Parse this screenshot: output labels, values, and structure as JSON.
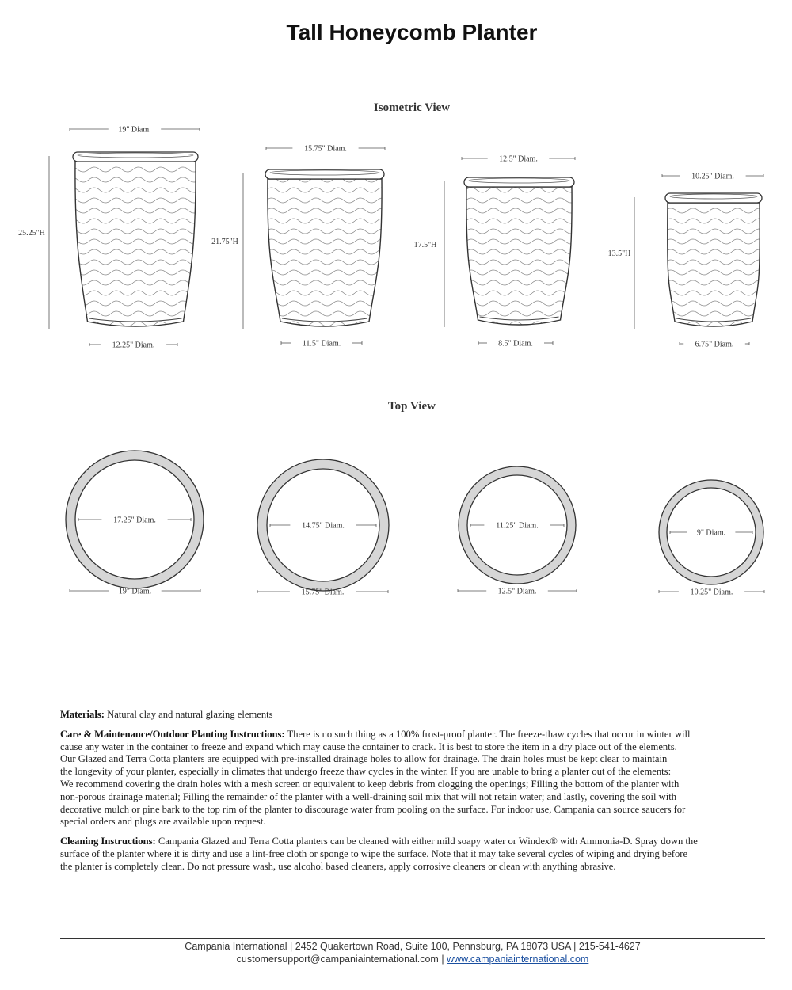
{
  "title": "Tall Honeycomb Planter",
  "isometric_title": "Isometric View",
  "top_title": "Top View",
  "planters": [
    {
      "top": "19\" Diam.",
      "height": "25.25\"H",
      "bottom": "12.25\" Diam.",
      "outer": "19\" Diam.",
      "inner": "17.25\" Diam."
    },
    {
      "top": "15.75\" Diam.",
      "height": "21.75\"H",
      "bottom": "11.5\" Diam.",
      "outer": "15.75\" Diam.",
      "inner": "14.75\" Diam."
    },
    {
      "top": "12.5\" Diam.",
      "height": "17.5\"H",
      "bottom": "8.5\" Diam.",
      "outer": "12.5\" Diam.",
      "inner": "11.25\" Diam."
    },
    {
      "top": "10.25\" Diam.",
      "height": "13.5\"H",
      "bottom": "6.75\" Diam.",
      "outer": "10.25\" Diam.",
      "inner": "9\" Diam."
    }
  ],
  "materials": {
    "label": "Materials:",
    "lines": [
      " Natural clay and natural glazing elements"
    ]
  },
  "care": {
    "label": "Care & Maintenance/Outdoor Planting Instructions:",
    "lines": [
      " There is no such thing as a 100% frost-proof planter. The freeze-thaw cycles that occur in winter will",
      "cause any water in the container to freeze and expand which may cause the container to crack. It is best to store the item in a dry place out of the elements.",
      "Our Glazed and Terra Cotta planters are equipped with pre-installed drainage holes to allow for drainage. The drain holes must be kept clear to maintain",
      "the longevity of your planter, especially in climates that undergo freeze thaw cycles in the winter. If you are unable to bring a planter out of the elements:",
      "We recommend covering the drain holes with a mesh screen or equivalent to keep debris from clogging the openings; Filling the bottom of the planter with",
      "non-porous drainage material; Filling the remainder of the planter with a well-draining soil mix that will not retain water; and lastly, covering the soil with",
      "decorative mulch or pine bark to the top rim of the planter to discourage water from pooling on the surface. For indoor use, Campania can source saucers for",
      "special orders and plugs are available upon request."
    ]
  },
  "cleaning": {
    "label": "Cleaning Instructions:",
    "lines": [
      " Campania Glazed and Terra Cotta planters can be cleaned with either mild soapy water or Windex® with Ammonia-D. Spray down the",
      "surface of the planter where it is dirty and use a lint-free cloth or sponge to wipe the surface. Note that it may take several cycles of wiping and drying before",
      "the planter is completely clean. Do not pressure wash, use alcohol based cleaners, apply corrosive cleaners or clean with anything abrasive."
    ]
  },
  "footer": {
    "line1": "Campania International | 2452 Quakertown Road, Suite 100, Pennsburg, PA 18073 USA | 215-541-4627",
    "email": "customersupport@campaniainternational.com",
    "sep": " | ",
    "website": "www.campaniainternational.com",
    "link_color": "#1a4fa0"
  }
}
